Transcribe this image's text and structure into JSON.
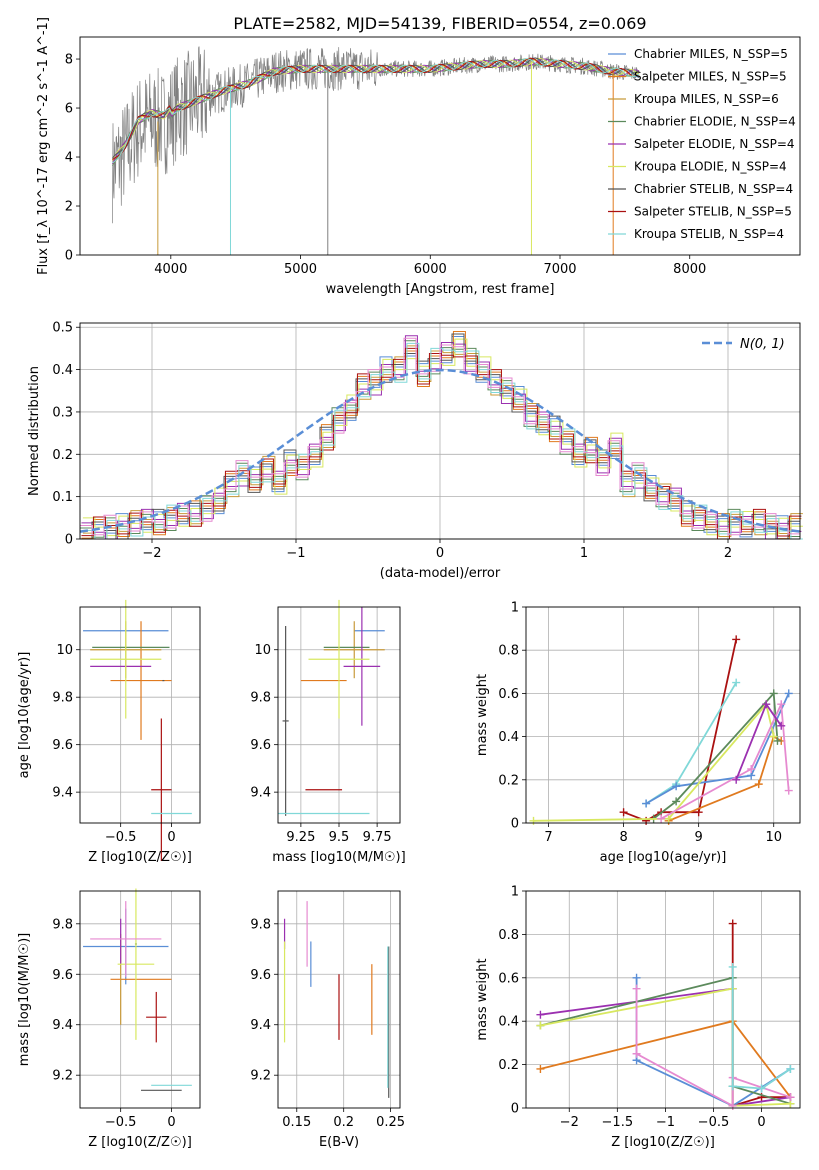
{
  "chart_data": [
    {
      "type": "line",
      "title": "PLATE=2582, MJD=54139, FIBERID=0554, z=0.069",
      "xlabel": "wavelength [Angstrom, rest frame]",
      "ylabel": "Flux [f_λ 10^-17 erg cm^-2 s^-1 A^-1]",
      "xlim": [
        3300,
        8850
      ],
      "ylim": [
        0,
        8.9
      ],
      "xticks": [
        4000,
        5000,
        6000,
        7000,
        8000
      ],
      "yticks": [
        0,
        2,
        4,
        6,
        8
      ],
      "legend_position": "right",
      "data_series": {
        "name": "data",
        "color": "#808080",
        "x": [
          3550,
          3650,
          3750,
          3850,
          3950,
          4050,
          4200,
          4400,
          4600,
          4800,
          5000,
          5200,
          5400,
          5600,
          5800,
          6000,
          6200,
          6400,
          6600,
          6800,
          7000,
          7200,
          7400,
          7600,
          7800,
          8000,
          8200,
          8400,
          8700
        ],
        "y": [
          3.5,
          4.2,
          5.2,
          5.5,
          5.4,
          6.0,
          6.3,
          6.7,
          7.0,
          7.5,
          7.6,
          7.6,
          7.6,
          7.6,
          7.6,
          7.6,
          7.7,
          7.8,
          7.8,
          7.9,
          7.8,
          7.7,
          7.5,
          7.4,
          7.2,
          7.1,
          7.0,
          6.8,
          6.6
        ]
      },
      "model_series": [
        {
          "name": "Chabrier MILES, N_SSP=5",
          "color": "#5a8ed6"
        },
        {
          "name": "Salpeter MILES, N_SSP=5",
          "color": "#e07a1f"
        },
        {
          "name": "Kroupa MILES, N_SSP=6",
          "color": "#c89a3a"
        },
        {
          "name": "Chabrier ELODIE, N_SSP=4",
          "color": "#5c8a5c"
        },
        {
          "name": "Salpeter ELODIE, N_SSP=4",
          "color": "#9b30b0"
        },
        {
          "name": "Kroupa ELODIE, N_SSP=4",
          "color": "#d8e860"
        },
        {
          "name": "Chabrier STELIB, N_SSP=4",
          "color": "#555555"
        },
        {
          "name": "Salpeter STELIB, N_SSP=5",
          "color": "#aa1111"
        },
        {
          "name": "Kroupa STELIB, N_SSP=4",
          "color": "#80d8d8"
        }
      ]
    },
    {
      "type": "bar",
      "xlabel": "(data-model)/error",
      "ylabel": "Normed distribution",
      "xlim": [
        -2.5,
        2.5
      ],
      "ylim": [
        0,
        0.51
      ],
      "xticks": [
        -2,
        -1,
        0,
        1,
        2
      ],
      "yticks": [
        0.0,
        0.1,
        0.2,
        0.3,
        0.4,
        0.5
      ],
      "legend": "N(0, 1)",
      "legend_position": "top-right",
      "normal_color": "#5a8ed6",
      "bin_width": 0.1,
      "bin_start": -2.5,
      "values": [
        0.02,
        0.022,
        0.026,
        0.03,
        0.037,
        0.04,
        0.04,
        0.05,
        0.06,
        0.06,
        0.072,
        0.09,
        0.13,
        0.155,
        0.14,
        0.165,
        0.13,
        0.18,
        0.17,
        0.2,
        0.24,
        0.28,
        0.31,
        0.36,
        0.37,
        0.4,
        0.4,
        0.45,
        0.39,
        0.42,
        0.44,
        0.46,
        0.42,
        0.4,
        0.37,
        0.35,
        0.33,
        0.29,
        0.27,
        0.26,
        0.23,
        0.2,
        0.21,
        0.18,
        0.22,
        0.13,
        0.15,
        0.12,
        0.1,
        0.09,
        0.06,
        0.05,
        0.04,
        0.03,
        0.04,
        0.035,
        0.04,
        0.03,
        0.025,
        0.03
      ]
    },
    {
      "type": "scatter",
      "xlabel": "Z [log10(Z/Z☉)]",
      "ylabel": "age  [log10(age/yr)]",
      "xlim": [
        -0.9,
        0.28
      ],
      "ylim": [
        9.27,
        10.18
      ],
      "xticks": [
        -0.5,
        0.0
      ],
      "yticks": [
        9.4,
        9.6,
        9.8,
        10.0
      ],
      "points": [
        {
          "c": "#5a8ed6",
          "x": -0.45,
          "xe": 0.42,
          "y": 10.08,
          "ye": 0.0
        },
        {
          "c": "#e07a1f",
          "x": -0.3,
          "xe": 0.3,
          "y": 9.87,
          "ye": 0.25
        },
        {
          "c": "#c89a3a",
          "x": -0.45,
          "xe": 0.35,
          "y": 10.0,
          "ye": 0.12
        },
        {
          "c": "#5c8a5c",
          "x": -0.4,
          "xe": 0.38,
          "y": 10.01,
          "ye": 0.0
        },
        {
          "c": "#9b30b0",
          "x": -0.5,
          "xe": 0.3,
          "y": 9.93,
          "ye": 0.0
        },
        {
          "c": "#d8e860",
          "x": -0.45,
          "xe": 0.35,
          "y": 9.96,
          "ye": 0.25
        },
        {
          "c": "#555555",
          "x": -0.08,
          "xe": 0.0,
          "y": 9.87,
          "ye": 0.0
        },
        {
          "c": "#aa1111",
          "x": -0.1,
          "xe": 0.1,
          "y": 9.41,
          "ye": 0.3
        },
        {
          "c": "#80d8d8",
          "x": 0.0,
          "xe": 0.2,
          "y": 9.31,
          "ye": 0.0
        }
      ]
    },
    {
      "type": "scatter",
      "xlabel": "mass [log10(M/M☉)]",
      "ylabel": "",
      "xlim": [
        9.1,
        9.9
      ],
      "ylim": [
        9.27,
        10.18
      ],
      "xticks": [
        9.25,
        9.5,
        9.75
      ],
      "yticks": [
        9.4,
        9.6,
        9.8,
        10.0
      ],
      "points": [
        {
          "c": "#5a8ed6",
          "x": 9.7,
          "xe": 0.1,
          "y": 10.08,
          "ye": 0.0
        },
        {
          "c": "#e07a1f",
          "x": 9.4,
          "xe": 0.15,
          "y": 9.87,
          "ye": 0.0
        },
        {
          "c": "#c89a3a",
          "x": 9.6,
          "xe": 0.2,
          "y": 10.0,
          "ye": 0.12
        },
        {
          "c": "#5c8a5c",
          "x": 9.55,
          "xe": 0.15,
          "y": 10.01,
          "ye": 0.0
        },
        {
          "c": "#9b30b0",
          "x": 9.65,
          "xe": 0.12,
          "y": 9.93,
          "ye": 0.25
        },
        {
          "c": "#d8e860",
          "x": 9.5,
          "xe": 0.2,
          "y": 9.96,
          "ye": 0.25
        },
        {
          "c": "#555555",
          "x": 9.15,
          "xe": 0.02,
          "y": 9.7,
          "ye": 0.4
        },
        {
          "c": "#aa1111",
          "x": 9.4,
          "xe": 0.12,
          "y": 9.41,
          "ye": 0.0
        },
        {
          "c": "#80d8d8",
          "x": 9.4,
          "xe": 0.3,
          "y": 9.31,
          "ye": 0.0
        }
      ]
    },
    {
      "type": "line",
      "xlabel": "age  [log10(age/yr)]",
      "ylabel": "mass weight",
      "xlim": [
        6.7,
        10.35
      ],
      "ylim": [
        0,
        1
      ],
      "xticks": [
        7,
        8,
        9,
        10
      ],
      "yticks": [
        0.0,
        0.2,
        0.4,
        0.6,
        0.8,
        1.0
      ],
      "series": [
        {
          "c": "#aa1111",
          "x": [
            8.0,
            8.3,
            8.5,
            9.0,
            9.5
          ],
          "y": [
            0.05,
            0.01,
            0.05,
            0.05,
            0.85
          ]
        },
        {
          "c": "#80d8d8",
          "x": [
            8.3,
            8.7,
            9.5
          ],
          "y": [
            0.09,
            0.18,
            0.65
          ]
        },
        {
          "c": "#5a8ed6",
          "x": [
            8.3,
            8.7,
            9.7,
            10.2
          ],
          "y": [
            0.09,
            0.17,
            0.22,
            0.6
          ]
        },
        {
          "c": "#e07a1f",
          "x": [
            8.6,
            9.8,
            10.0,
            10.1
          ],
          "y": [
            0.01,
            0.18,
            0.4,
            0.38
          ]
        },
        {
          "c": "#5c8a5c",
          "x": [
            8.4,
            8.7,
            10.0,
            10.05
          ],
          "y": [
            0.02,
            0.1,
            0.6,
            0.38
          ]
        },
        {
          "c": "#d8e860",
          "x": [
            6.8,
            8.6,
            9.9,
            10.0
          ],
          "y": [
            0.01,
            0.02,
            0.55,
            0.4
          ]
        },
        {
          "c": "#e68ad0",
          "x": [
            8.5,
            9.7,
            10.1,
            10.2
          ],
          "y": [
            0.02,
            0.25,
            0.55,
            0.15
          ]
        },
        {
          "c": "#9b30b0",
          "x": [
            9.5,
            9.9,
            10.1
          ],
          "y": [
            0.2,
            0.55,
            0.45
          ]
        }
      ]
    },
    {
      "type": "scatter",
      "xlabel": "Z [log10(Z/Z☉)]",
      "ylabel": "mass [log10(M/M☉)]",
      "xlim": [
        -0.9,
        0.28
      ],
      "ylim": [
        9.07,
        9.93
      ],
      "xticks": [
        -0.5,
        0.0
      ],
      "yticks": [
        9.2,
        9.4,
        9.6,
        9.8
      ],
      "points": [
        {
          "c": "#5a8ed6",
          "x": -0.45,
          "xe": 0.42,
          "y": 9.71,
          "ye": 0.15
        },
        {
          "c": "#e07a1f",
          "x": -0.3,
          "xe": 0.3,
          "y": 9.58,
          "ye": 0.0
        },
        {
          "c": "#c89a3a",
          "x": -0.5,
          "xe": 0.0,
          "y": 9.58,
          "ye": 0.18
        },
        {
          "c": "#5c8a5c",
          "x": -0.35,
          "xe": 0.0,
          "y": 9.72,
          "ye": 0.0
        },
        {
          "c": "#9b30b0",
          "x": -0.5,
          "xe": 0.0,
          "y": 9.73,
          "ye": 0.09
        },
        {
          "c": "#d8e860",
          "x": -0.35,
          "xe": 0.18,
          "y": 9.64,
          "ye": 0.3
        },
        {
          "c": "#555555",
          "x": -0.1,
          "xe": 0.2,
          "y": 9.14,
          "ye": 0.0
        },
        {
          "c": "#aa1111",
          "x": -0.15,
          "xe": 0.1,
          "y": 9.43,
          "ye": 0.1
        },
        {
          "c": "#80d8d8",
          "x": 0.0,
          "xe": 0.2,
          "y": 9.16,
          "ye": 0.0
        },
        {
          "c": "#e68ad0",
          "x": -0.45,
          "xe": 0.35,
          "y": 9.74,
          "ye": 0.15
        }
      ]
    },
    {
      "type": "scatter",
      "xlabel": "E(B-V)",
      "ylabel": "",
      "xlim": [
        0.13,
        0.26
      ],
      "ylim": [
        9.07,
        9.93
      ],
      "xticks": [
        0.15,
        0.2,
        0.25
      ],
      "yticks": [
        9.2,
        9.4,
        9.6,
        9.8
      ],
      "points": [
        {
          "c": "#9b30b0",
          "x": 0.137,
          "y": 9.76,
          "ye": 0.06
        },
        {
          "c": "#d8e860",
          "x": 0.137,
          "y": 9.53,
          "ye": 0.2
        },
        {
          "c": "#5a8ed6",
          "x": 0.165,
          "y": 9.64,
          "ye": 0.09
        },
        {
          "c": "#e68ad0",
          "x": 0.161,
          "y": 9.76,
          "ye": 0.13
        },
        {
          "c": "#aa1111",
          "x": 0.195,
          "y": 9.47,
          "ye": 0.13
        },
        {
          "c": "#e07a1f",
          "x": 0.23,
          "y": 9.5,
          "ye": 0.14
        },
        {
          "c": "#555555",
          "x": 0.248,
          "y": 9.41,
          "ye": 0.3
        },
        {
          "c": "#80d8d8",
          "x": 0.247,
          "y": 9.43,
          "ye": 0.28
        }
      ]
    },
    {
      "type": "line",
      "xlabel": "Z [log10(Z/Z☉)]",
      "ylabel": "mass weight",
      "xlim": [
        -2.45,
        0.4
      ],
      "ylim": [
        0,
        1
      ],
      "xticks": [
        -2.0,
        -1.5,
        -1.0,
        -0.5,
        0.0
      ],
      "yticks": [
        0.0,
        0.2,
        0.4,
        0.6,
        0.8,
        1.0
      ],
      "series": [
        {
          "c": "#aa1111",
          "x": [
            -0.3,
            -0.3,
            -0.3,
            0.0,
            0.3
          ],
          "y": [
            0.85,
            0.01,
            0.01,
            0.05,
            0.05
          ]
        },
        {
          "c": "#5a8ed6",
          "x": [
            -1.3,
            -1.3,
            -0.3,
            0.3,
            0.0
          ],
          "y": [
            0.6,
            0.22,
            0.01,
            0.18,
            0.09
          ]
        },
        {
          "c": "#e07a1f",
          "x": [
            -2.3,
            -0.3,
            0.3
          ],
          "y": [
            0.18,
            0.4,
            0.05
          ]
        },
        {
          "c": "#9b30b0",
          "x": [
            -2.3,
            -0.3,
            -0.3,
            0.3
          ],
          "y": [
            0.43,
            0.55,
            0.01,
            0.05
          ]
        },
        {
          "c": "#5c8a5c",
          "x": [
            -2.3,
            -0.3,
            -0.3,
            0.3
          ],
          "y": [
            0.38,
            0.6,
            0.1,
            0.02
          ]
        },
        {
          "c": "#d8e860",
          "x": [
            -2.3,
            -0.3,
            -0.3,
            0.3
          ],
          "y": [
            0.38,
            0.55,
            0.01,
            0.02
          ]
        },
        {
          "c": "#e68ad0",
          "x": [
            -1.3,
            -1.3,
            -0.3,
            -0.3,
            0.3
          ],
          "y": [
            0.55,
            0.25,
            0.01,
            0.14,
            0.05
          ]
        },
        {
          "c": "#80d8d8",
          "x": [
            -0.3,
            -0.3,
            0.0,
            0.3
          ],
          "y": [
            0.65,
            0.1,
            0.09,
            0.18
          ]
        }
      ]
    }
  ]
}
